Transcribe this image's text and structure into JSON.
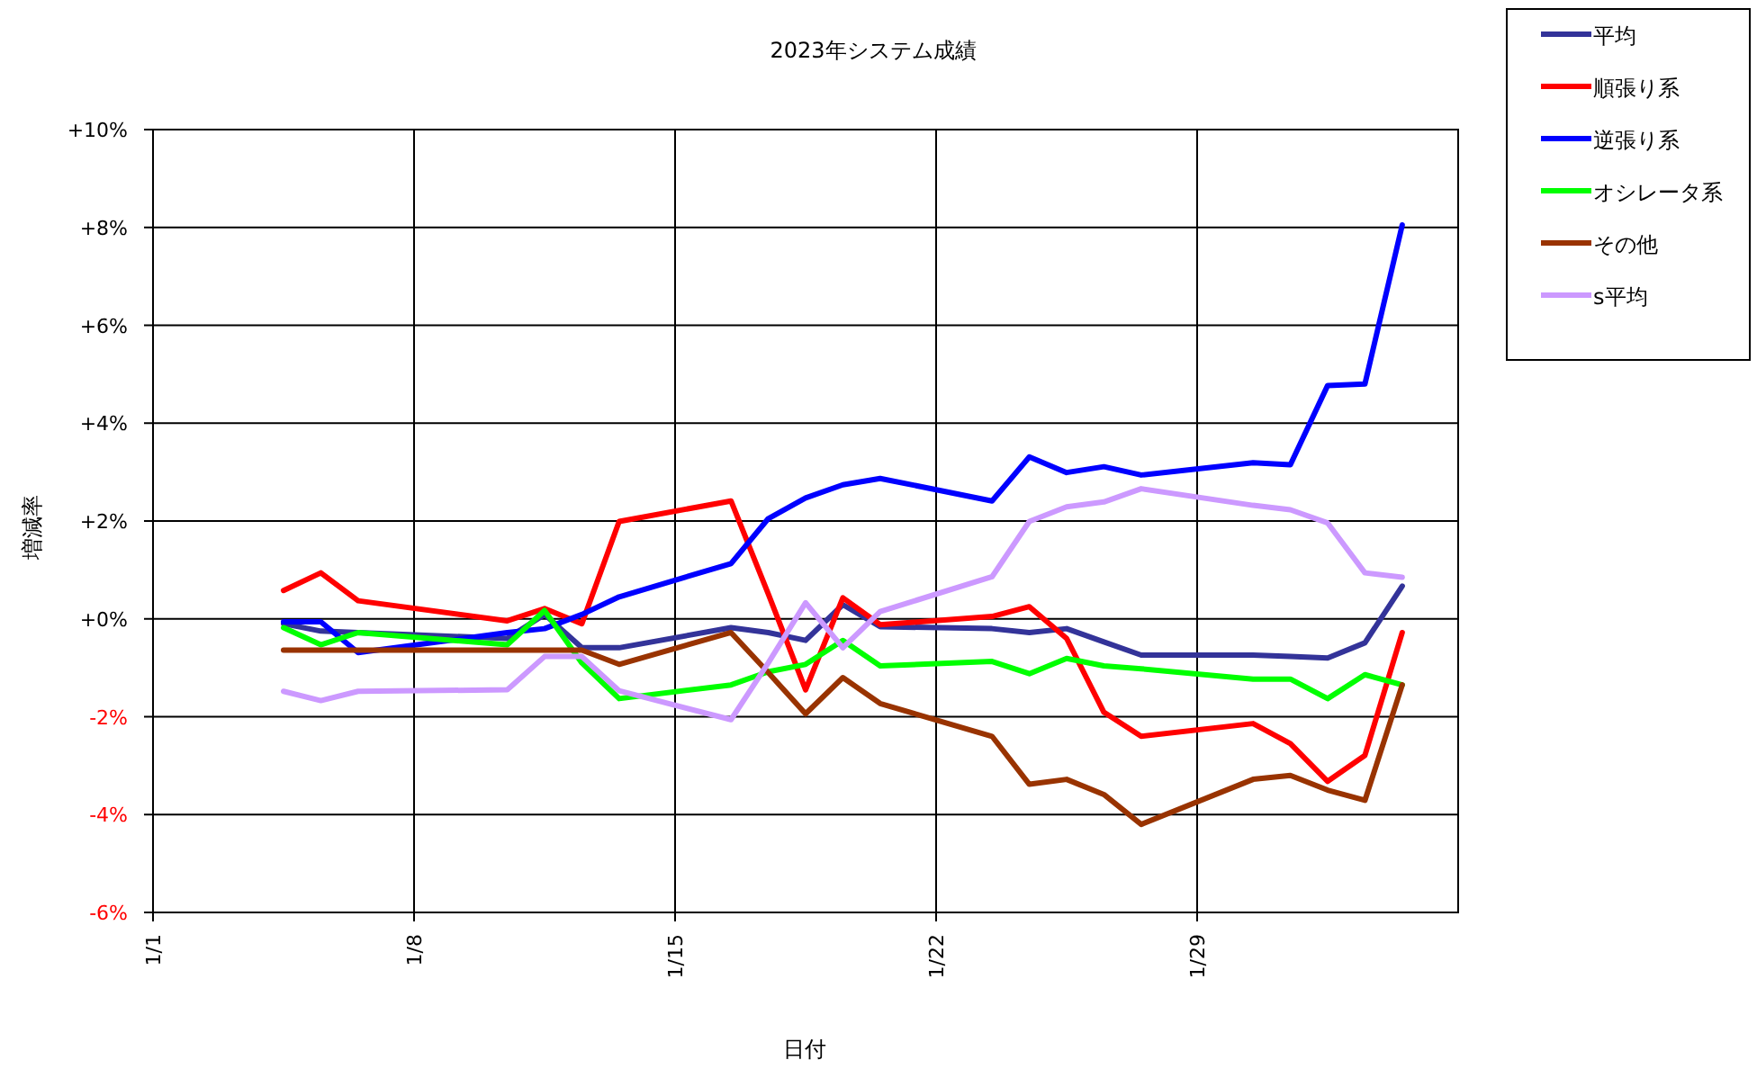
{
  "chart_data": {
    "type": "line",
    "title": "2023年システム成績",
    "xlabel": "日付",
    "ylabel": "増減率",
    "x": [
      "2023-01-04T12:00",
      "2023-01-05T12:00",
      "2023-01-06T12:00",
      "2023-01-10T12:00",
      "2023-01-11T12:00",
      "2023-01-12T12:00",
      "2023-01-13T12:00",
      "2023-01-16T12:00",
      "2023-01-17T12:00",
      "2023-01-18T12:00",
      "2023-01-19T12:00",
      "2023-01-20T12:00",
      "2023-01-23T12:00",
      "2023-01-24T12:00",
      "2023-01-25T12:00",
      "2023-01-26T12:00",
      "2023-01-27T12:00",
      "2023-01-30T12:00",
      "2023-01-31T12:00",
      "2023-02-01T12:00",
      "2023-02-02T12:00",
      "2023-02-03T12:00"
    ],
    "xlim": [
      "2023-01-01",
      "2023-02-05"
    ],
    "xticks": [
      {
        "value": "2023-01-01",
        "label": "1/1"
      },
      {
        "value": "2023-01-08",
        "label": "1/8"
      },
      {
        "value": "2023-01-15",
        "label": "1/15"
      },
      {
        "value": "2023-01-22",
        "label": "1/22"
      },
      {
        "value": "2023-01-29",
        "label": "1/29"
      }
    ],
    "ylim": [
      -6,
      10
    ],
    "yticks": [
      {
        "value": -6,
        "label": "-6%"
      },
      {
        "value": -4,
        "label": "-4%"
      },
      {
        "value": -2,
        "label": "-2%"
      },
      {
        "value": 0,
        "label": "+0%"
      },
      {
        "value": 2,
        "label": "+2%"
      },
      {
        "value": 4,
        "label": "+4%"
      },
      {
        "value": 6,
        "label": "+6%"
      },
      {
        "value": 8,
        "label": "+8%"
      },
      {
        "value": 10,
        "label": "+10%"
      }
    ],
    "grid": true,
    "legend": "top right",
    "marker": "none",
    "line_style": "solid",
    "series": [
      {
        "name": "平均",
        "color": "#333399",
        "values": [
          -0.1,
          -0.25,
          -0.28,
          -0.4,
          0.09,
          -0.59,
          -0.59,
          -0.18,
          -0.28,
          -0.44,
          0.29,
          -0.16,
          -0.2,
          -0.28,
          -0.2,
          -0.47,
          -0.74,
          -0.74,
          -0.77,
          -0.8,
          -0.49,
          0.67
        ]
      },
      {
        "name": "順張り系",
        "color": "#ff0000",
        "values": [
          0.58,
          0.94,
          0.37,
          -0.04,
          0.21,
          -0.1,
          1.99,
          2.41,
          0.51,
          -1.45,
          0.43,
          -0.12,
          0.05,
          0.25,
          -0.4,
          -1.91,
          -2.4,
          -2.14,
          -2.55,
          -3.32,
          -2.79,
          -0.28
        ]
      },
      {
        "name": "逆張り系",
        "color": "#0000ff",
        "values": [
          -0.06,
          -0.06,
          -0.69,
          -0.28,
          -0.2,
          0.09,
          0.45,
          1.13,
          2.05,
          2.47,
          2.74,
          2.87,
          2.41,
          3.31,
          2.99,
          3.11,
          2.94,
          3.19,
          3.15,
          4.77,
          4.8,
          8.05
        ]
      },
      {
        "name": "オシレータ系",
        "color": "#00ff00",
        "values": [
          -0.18,
          -0.53,
          -0.28,
          -0.53,
          0.17,
          -0.9,
          -1.63,
          -1.35,
          -1.08,
          -0.93,
          -0.44,
          -0.96,
          -0.87,
          -1.12,
          -0.81,
          -0.96,
          -1.02,
          -1.23,
          -1.23,
          -1.63,
          -1.14,
          -1.35
        ]
      },
      {
        "name": "その他",
        "color": "#993300",
        "values": [
          -0.64,
          -0.64,
          -0.64,
          -0.64,
          -0.64,
          -0.64,
          -0.93,
          -0.28,
          -1.1,
          -1.94,
          -1.2,
          -1.73,
          -2.4,
          -3.38,
          -3.28,
          -3.59,
          -4.2,
          -3.28,
          -3.2,
          -3.5,
          -3.71,
          -1.35
        ]
      },
      {
        "name": "s平均",
        "color": "#cc99ff",
        "values": [
          -1.48,
          -1.67,
          -1.48,
          -1.45,
          -0.77,
          -0.77,
          -1.47,
          -2.06,
          -0.9,
          0.33,
          -0.59,
          0.15,
          0.86,
          1.99,
          2.29,
          2.39,
          2.66,
          2.32,
          2.23,
          1.96,
          0.94,
          0.85
        ]
      }
    ]
  }
}
